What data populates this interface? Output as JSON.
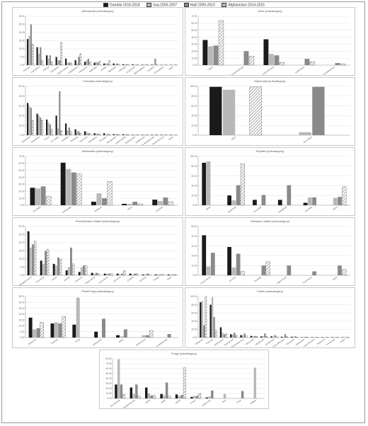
{
  "legend": [
    "Gambia 2016-2018",
    "Iraq 2005-2007",
    "Haiti 2009-2010",
    "Afghanistan 2014-2015"
  ],
  "colors": {
    "s0": "#1a1a1a",
    "s1": "#b8b8b8",
    "s2": "#8a8a8a",
    "s3": "pattern"
  },
  "chart_data": [
    {
      "type": "bar",
      "title": "Arthropoda (subcategory)",
      "ylim": [
        0,
        30
      ],
      "yticks": [
        "0.00",
        "5.00",
        "10.00",
        "15.00",
        "20.00",
        "25.00",
        "30.00"
      ],
      "categories": [
        "Araneae",
        "Coleoptera",
        "Diptera",
        "Hemiptera",
        "Hymenoptera",
        "Lepidoptera",
        "Orthoptera",
        "Blattodea",
        "Ixodida",
        "Mantodea",
        "Odonata",
        "Scorpiones",
        "Siphonaptera",
        "Isoptera",
        "Dermaptera",
        "Other"
      ],
      "series": [
        {
          "values": [
            16,
            11,
            6,
            5,
            4,
            3,
            2,
            1.5,
            1,
            1,
            0.5,
            0.5,
            0.3,
            0.3,
            0.2,
            0.2
          ]
        },
        {
          "values": [
            18,
            7,
            4,
            3,
            1.5,
            1,
            3,
            2,
            1,
            0.5,
            0.5,
            0.3,
            0.3,
            0.2,
            0.2,
            0.2
          ]
        },
        {
          "values": [
            25,
            11,
            6,
            3,
            1.5,
            5,
            4,
            1.5,
            1,
            1,
            0.5,
            0.3,
            0.3,
            4,
            0.2,
            0.2
          ]
        },
        {
          "values": [
            13,
            3,
            2,
            14,
            1.5,
            7,
            2,
            2.5,
            3,
            0.5,
            0.5,
            0.3,
            0.3,
            0.2,
            0.2,
            0.2
          ]
        }
      ]
    },
    {
      "type": "bar",
      "title": "Aves (subcategory)",
      "ylim": [
        0,
        70
      ],
      "yticks": [
        "0.00",
        "10.00",
        "20.00",
        "30.00",
        "40.00",
        "50.00",
        "60.00",
        "70.00"
      ],
      "categories": [
        "Other",
        "Columbiformes",
        "Passeriformes",
        "Galliformes",
        "Accipitriformes"
      ],
      "series": [
        {
          "values": [
            36,
            0,
            37,
            0,
            0
          ]
        },
        {
          "values": [
            27,
            0,
            16,
            0,
            0
          ]
        },
        {
          "values": [
            28,
            20,
            14,
            9,
            3
          ]
        },
        {
          "values": [
            64,
            13,
            4,
            5,
            2
          ]
        }
      ]
    },
    {
      "type": "bar",
      "title": "Chordata (subcategory)",
      "ylim": [
        0,
        50
      ],
      "yticks": [
        "0.00",
        "10.00",
        "20.00",
        "30.00",
        "40.00",
        "50.00"
      ],
      "categories": [
        "Squamata",
        "Testudines",
        "Anura",
        "Crocodilia",
        "Caudata",
        "Rodentia",
        "Carnivora",
        "Chiroptera",
        "Primates",
        "Artiodactyla",
        "Lagomorpha",
        "Eulipotyphla",
        "Galliformes",
        "Columbiformes",
        "Passeriformes",
        "Other"
      ],
      "series": [
        {
          "values": [
            33,
            22,
            16,
            20,
            12,
            6,
            4,
            2,
            2,
            1,
            1,
            0.5,
            0.5,
            0.5,
            0.5,
            0.5
          ]
        },
        {
          "values": [
            30,
            20,
            13,
            7,
            5,
            4,
            3,
            1.5,
            1,
            1,
            0.5,
            0.5,
            0.5,
            0.5,
            0.5,
            0.3
          ]
        },
        {
          "values": [
            28,
            18,
            11,
            45,
            8,
            4,
            2,
            1.5,
            1,
            1,
            1,
            0.5,
            0.5,
            0.5,
            0.5,
            0.3
          ]
        },
        {
          "values": [
            15,
            15,
            6,
            5,
            4,
            2,
            2,
            1,
            1,
            0.5,
            0.5,
            0.5,
            0.5,
            0.5,
            0.3,
            0.3
          ]
        }
      ]
    },
    {
      "type": "bar",
      "title": "Mammalia (subcategory)",
      "ylim": [
        0,
        100
      ],
      "yticks": [
        "0.00",
        "20.00",
        "40.00",
        "60.00",
        "80.00",
        "100.00"
      ],
      "categories": [
        "Other",
        "Non-native"
      ],
      "series": [
        {
          "values": [
            99,
            0
          ]
        },
        {
          "values": [
            93,
            6
          ]
        },
        {
          "values": [
            0,
            99
          ]
        },
        {
          "values": [
            99,
            0
          ]
        }
      ]
    },
    {
      "type": "bar",
      "title": "Mammalia (subcategory)",
      "ylim": [
        0,
        70
      ],
      "yticks": [
        "0.00",
        "10.00",
        "20.00",
        "30.00",
        "40.00",
        "50.00",
        "60.00",
        "70.00"
      ],
      "categories": [
        "Chordata",
        "Arthropoda",
        "Mollusca",
        "Other",
        "Annelida"
      ],
      "series": [
        {
          "values": [
            25,
            61,
            5,
            2,
            8
          ]
        },
        {
          "values": [
            24,
            52,
            17,
            2,
            6
          ]
        },
        {
          "values": [
            27,
            47,
            10,
            5,
            11
          ]
        },
        {
          "values": [
            13,
            45,
            34,
            2,
            5
          ]
        }
      ]
    },
    {
      "type": "bar",
      "title": "Reptiles (subcategory)",
      "ylim": [
        0,
        100
      ],
      "yticks": [
        "0.00",
        "20.00",
        "40.00",
        "60.00",
        "80.00",
        "100.00"
      ],
      "categories": [
        "Other",
        "Squamata",
        "Crocodilia",
        "Testudines",
        "Lacertilia",
        "Other"
      ],
      "series": [
        {
          "values": [
            87,
            20,
            11,
            11,
            5,
            0
          ]
        },
        {
          "values": [
            90,
            10,
            0,
            0,
            16,
            15
          ]
        },
        {
          "values": [
            0,
            41,
            21,
            41,
            16,
            17
          ]
        },
        {
          "values": [
            0,
            85,
            0,
            0,
            0,
            38
          ]
        }
      ]
    },
    {
      "type": "bar",
      "title": "Pest/Disease related (subcategory)",
      "ylim": [
        0,
        30
      ],
      "yticks": [
        "0.00",
        "5.00",
        "10.00",
        "15.00",
        "20.00",
        "25.00",
        "30.00"
      ],
      "categories": [
        "Mosquito-borne",
        "Tick-borne",
        "Vector",
        "Rodent",
        "Fly-borne",
        "Water-borne",
        "Food-borne",
        "Air-borne",
        "Contact",
        "Zoonotic",
        "Fungal",
        "Other"
      ],
      "series": [
        {
          "values": [
            27,
            9,
            7,
            3,
            2,
            1.5,
            1,
            1,
            1,
            0.5,
            0.5,
            0.5
          ]
        },
        {
          "values": [
            17,
            7,
            6,
            5,
            5,
            1,
            1,
            0.5,
            0.5,
            0.5,
            0.5,
            0.5
          ]
        },
        {
          "values": [
            19,
            15,
            11,
            17,
            6,
            1.5,
            1,
            1,
            1,
            1,
            0.5,
            0.5
          ]
        },
        {
          "values": [
            21,
            16,
            10,
            7,
            6,
            1,
            1,
            3,
            1,
            0.5,
            0.5,
            0.5
          ]
        }
      ]
    },
    {
      "type": "bar",
      "title": "Diseases related (subcategory)",
      "ylim": [
        0,
        50
      ],
      "yticks": [
        "0.00",
        "10.00",
        "20.00",
        "30.00",
        "40.00",
        "50.00"
      ],
      "categories": [
        "Vector-borne",
        "Zoonotic",
        "Parasitic",
        "Water-borne",
        "Food-borne",
        "Other"
      ],
      "series": [
        {
          "values": [
            41,
            29,
            0,
            0,
            0,
            0
          ]
        },
        {
          "values": [
            9,
            8,
            0,
            0,
            0,
            0
          ]
        },
        {
          "values": [
            23,
            22,
            10,
            10,
            4,
            10
          ]
        },
        {
          "values": [
            0,
            4,
            14,
            0,
            0,
            6
          ]
        }
      ]
    },
    {
      "type": "bar",
      "title": "Plant/Fungi (subcategory)",
      "ylim": [
        0,
        35
      ],
      "yticks": [
        "0.00",
        "5.00",
        "10.00",
        "15.00",
        "20.00",
        "25.00",
        "30.00",
        "35.00"
      ],
      "categories": [
        "Fabaceae",
        "Poaceae",
        "Fungi",
        "Asteraceae",
        "Other",
        "Solanaceae",
        "Crassulaceae"
      ],
      "series": [
        {
          "values": [
            17,
            12,
            11,
            5,
            2,
            0,
            0
          ]
        },
        {
          "values": [
            7,
            13,
            34,
            0,
            1,
            2,
            0
          ]
        },
        {
          "values": [
            8,
            12,
            0,
            16,
            7,
            2,
            3
          ]
        },
        {
          "values": [
            13,
            18,
            0,
            0,
            0,
            6,
            0
          ]
        }
      ]
    },
    {
      "type": "bar",
      "title": "Plants (subcategory)",
      "ylim": [
        0,
        100
      ],
      "yticks": [
        "0.00",
        "20.00",
        "40.00",
        "60.00",
        "80.00",
        "100.00"
      ],
      "categories": [
        "Fabaceae",
        "Poaceae",
        "Asteraceae",
        "Solanaceae",
        "Euphorbiaceae",
        "Moraceae",
        "Myrtaceae",
        "Lamiaceae",
        "Cucurbitaceae",
        "Rosaceae",
        "Malvaceae",
        "Apocynaceae",
        "Rutaceae",
        "Arecaceae",
        "Other"
      ],
      "series": [
        {
          "values": [
            86,
            80,
            25,
            8,
            6,
            4,
            3,
            3,
            2,
            2,
            1,
            1,
            1,
            1,
            1
          ]
        },
        {
          "values": [
            89,
            99,
            12,
            7,
            5,
            3,
            3,
            2,
            2,
            2,
            1,
            1,
            1,
            1,
            1
          ]
        },
        {
          "values": [
            30,
            50,
            8,
            12,
            10,
            4,
            10,
            6,
            8,
            3,
            2,
            1,
            1,
            1,
            1
          ]
        },
        {
          "values": [
            100,
            18,
            9,
            6,
            4,
            3,
            3,
            2,
            2,
            1,
            1,
            1,
            1,
            1,
            1
          ]
        }
      ]
    },
    {
      "type": "bar",
      "title": "Fungi (subcategory)",
      "ylim": [
        0,
        80
      ],
      "yticks": [
        "0.00",
        "10.00",
        "20.00",
        "30.00",
        "40.00",
        "50.00",
        "60.00",
        "70.00",
        "80.00"
      ],
      "categories": [
        "Ascomycota",
        "Basidiomycota",
        "Other",
        "Yeast",
        "Mould",
        "Lichen",
        "Mushroom",
        "Rust",
        "Smut",
        "Mildew"
      ],
      "series": [
        {
          "values": [
            28,
            22,
            22,
            9,
            8,
            3,
            2,
            0,
            0,
            0
          ]
        },
        {
          "values": [
            79,
            9,
            10,
            6,
            5,
            5,
            4,
            9,
            0,
            62
          ]
        },
        {
          "values": [
            28,
            28,
            6,
            32,
            7,
            5,
            16,
            0,
            15,
            0
          ]
        },
        {
          "values": [
            8,
            5,
            6,
            5,
            62,
            10,
            0,
            0,
            0,
            0
          ]
        }
      ]
    }
  ]
}
